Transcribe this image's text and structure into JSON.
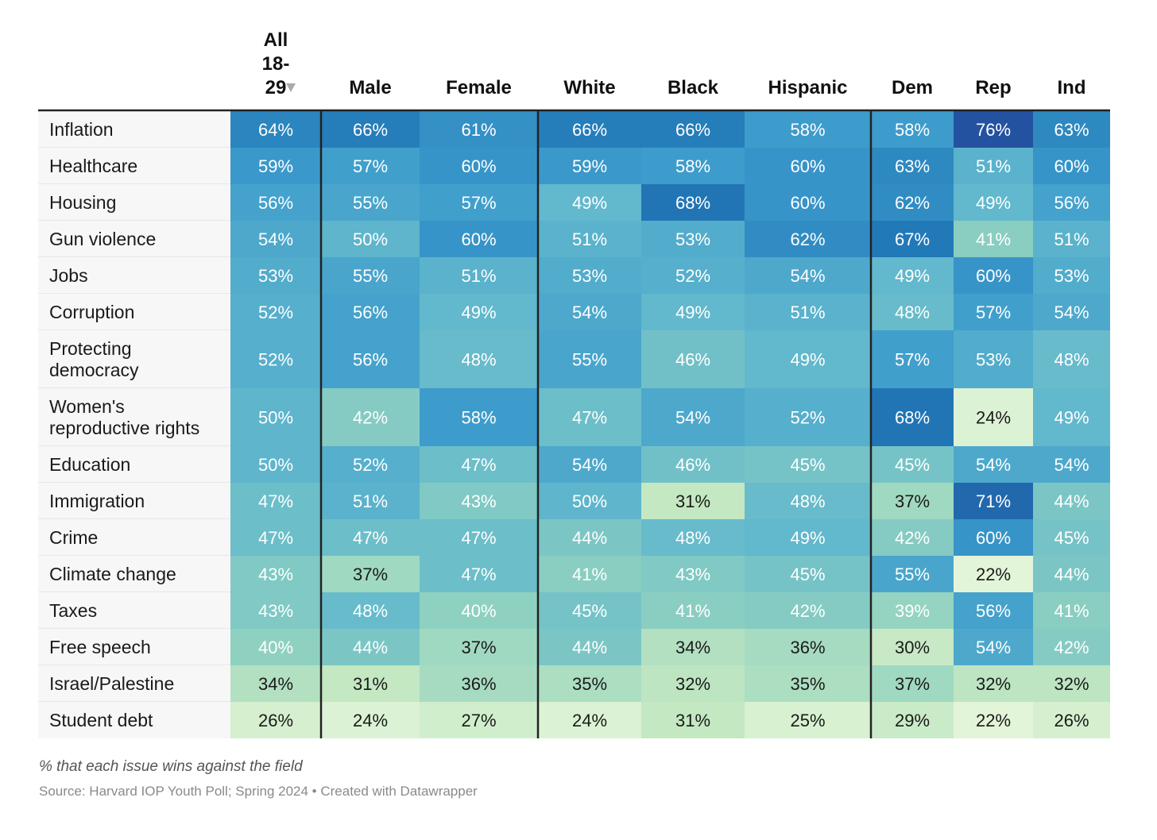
{
  "chart_data": {
    "type": "heatmap",
    "columns": [
      "All 18-29",
      "Male",
      "Female",
      "White",
      "Black",
      "Hispanic",
      "Dem",
      "Rep",
      "Ind"
    ],
    "sorted_column": "All 18-29",
    "sort_direction": "descending",
    "rows": [
      {
        "label": "Inflation",
        "values": [
          64,
          66,
          61,
          66,
          66,
          58,
          58,
          76,
          63
        ]
      },
      {
        "label": "Healthcare",
        "values": [
          59,
          57,
          60,
          59,
          58,
          60,
          63,
          51,
          60
        ]
      },
      {
        "label": "Housing",
        "values": [
          56,
          55,
          57,
          49,
          68,
          60,
          62,
          49,
          56
        ]
      },
      {
        "label": "Gun violence",
        "values": [
          54,
          50,
          60,
          51,
          53,
          62,
          67,
          41,
          51
        ]
      },
      {
        "label": "Jobs",
        "values": [
          53,
          55,
          51,
          53,
          52,
          54,
          49,
          60,
          53
        ]
      },
      {
        "label": "Corruption",
        "values": [
          52,
          56,
          49,
          54,
          49,
          51,
          48,
          57,
          54
        ]
      },
      {
        "label": "Protecting democracy",
        "values": [
          52,
          56,
          48,
          55,
          46,
          49,
          57,
          53,
          48
        ]
      },
      {
        "label": "Women's reproductive rights",
        "values": [
          50,
          42,
          58,
          47,
          54,
          52,
          68,
          24,
          49
        ]
      },
      {
        "label": "Education",
        "values": [
          50,
          52,
          47,
          54,
          46,
          45,
          45,
          54,
          54
        ]
      },
      {
        "label": "Immigration",
        "values": [
          47,
          51,
          43,
          50,
          31,
          48,
          37,
          71,
          44
        ]
      },
      {
        "label": "Crime",
        "values": [
          47,
          47,
          47,
          44,
          48,
          49,
          42,
          60,
          45
        ]
      },
      {
        "label": "Climate change",
        "values": [
          43,
          37,
          47,
          41,
          43,
          45,
          55,
          22,
          44
        ]
      },
      {
        "label": "Taxes",
        "values": [
          43,
          48,
          40,
          45,
          41,
          42,
          39,
          56,
          41
        ]
      },
      {
        "label": "Free speech",
        "values": [
          40,
          44,
          37,
          44,
          34,
          36,
          30,
          54,
          42
        ]
      },
      {
        "label": "Israel/Palestine",
        "values": [
          34,
          31,
          36,
          35,
          32,
          35,
          37,
          32,
          32
        ]
      },
      {
        "label": "Student debt",
        "values": [
          26,
          24,
          27,
          24,
          31,
          25,
          29,
          22,
          26
        ]
      }
    ],
    "value_suffix": "%",
    "color_scale": [
      "#e3f5d9",
      "#c3e8c2",
      "#8fd1c0",
      "#62b8cc",
      "#3d9ccc",
      "#2279b8",
      "#2352a0"
    ]
  },
  "notes": {
    "description": "% that each issue wins against the field",
    "source": "Source: Harvard IOP Youth Poll; Spring 2024 • Created with Datawrapper"
  }
}
